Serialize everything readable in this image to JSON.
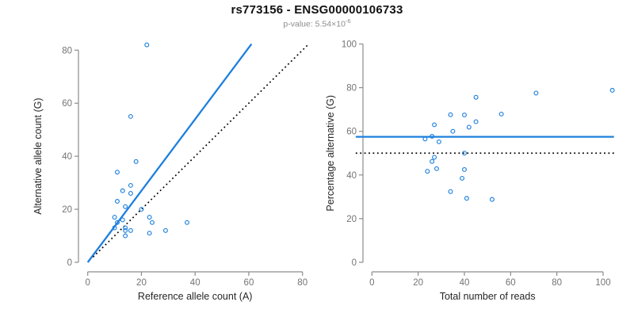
{
  "header": {
    "title": "rs773156 - ENSG00000106733",
    "p_value_label": "p-value:",
    "p_value_mantissa": "5.54×10",
    "p_value_exponent": "-6"
  },
  "colors": {
    "accent_blue": "#1E80DD",
    "dotted_black": "#000000",
    "axis_gray": "#8c8c8c",
    "tick_label_gray": "#737373",
    "axis_title_color": "#262626"
  },
  "chart_data": [
    {
      "type": "scatter",
      "side": "left",
      "xlabel": "Reference allele count (A)",
      "ylabel": "Alternative allele count (G)",
      "xticks": [
        0,
        20,
        40,
        60,
        80
      ],
      "yticks": [
        0,
        20,
        40,
        60,
        80
      ],
      "xlim": [
        0,
        83
      ],
      "ylim": [
        0,
        83
      ],
      "grid": false,
      "points": [
        [
          22,
          82
        ],
        [
          16,
          55
        ],
        [
          18,
          38
        ],
        [
          11,
          34
        ],
        [
          16,
          29
        ],
        [
          13,
          27
        ],
        [
          16,
          26
        ],
        [
          11,
          23
        ],
        [
          14,
          21
        ],
        [
          20,
          20
        ],
        [
          10,
          17
        ],
        [
          23,
          17
        ],
        [
          11,
          15
        ],
        [
          13,
          16
        ],
        [
          24,
          15
        ],
        [
          37,
          15
        ],
        [
          14,
          13
        ],
        [
          10,
          13
        ],
        [
          14,
          12
        ],
        [
          16,
          12
        ],
        [
          29,
          12
        ],
        [
          23,
          11
        ],
        [
          14,
          10
        ]
      ],
      "lines": [
        {
          "name": "fit-line",
          "style": "solid",
          "color": "#1E80DD",
          "from": [
            0,
            0
          ],
          "to": [
            61,
            82.3
          ]
        },
        {
          "name": "identity-line",
          "style": "dotted",
          "color": "#000000",
          "from": [
            2,
            2
          ],
          "to": [
            82,
            82
          ]
        }
      ]
    },
    {
      "type": "scatter",
      "side": "right",
      "xlabel": "Total number of reads",
      "ylabel": "Percentage alternative (G)",
      "xticks": [
        0,
        20,
        40,
        60,
        80,
        100
      ],
      "yticks": [
        0,
        20,
        40,
        60,
        80,
        100
      ],
      "xlim": [
        0,
        105
      ],
      "ylim": [
        0,
        100
      ],
      "grid": false,
      "points": [
        [
          104,
          78.8
        ],
        [
          71,
          77.5
        ],
        [
          56,
          67.9
        ],
        [
          45,
          75.6
        ],
        [
          45,
          64.4
        ],
        [
          40,
          67.5
        ],
        [
          42,
          61.9
        ],
        [
          34,
          67.6
        ],
        [
          35,
          60.0
        ],
        [
          40,
          50.0
        ],
        [
          27,
          63.0
        ],
        [
          40,
          42.5
        ],
        [
          26,
          57.7
        ],
        [
          29,
          55.2
        ],
        [
          39,
          38.5
        ],
        [
          52,
          28.8
        ],
        [
          27,
          48.1
        ],
        [
          23,
          56.5
        ],
        [
          26,
          46.2
        ],
        [
          28,
          42.9
        ],
        [
          41,
          29.3
        ],
        [
          34,
          32.4
        ],
        [
          24,
          41.7
        ]
      ],
      "lines": [
        {
          "name": "mean-percentage-line",
          "style": "solid",
          "color": "#1E80DD",
          "from": [
            -7,
            57.5
          ],
          "to": [
            104.7,
            57.5
          ]
        },
        {
          "name": "fifty-percent-line",
          "style": "dotted",
          "color": "#000000",
          "from": [
            -7,
            50
          ],
          "to": [
            105,
            50
          ]
        }
      ]
    }
  ]
}
